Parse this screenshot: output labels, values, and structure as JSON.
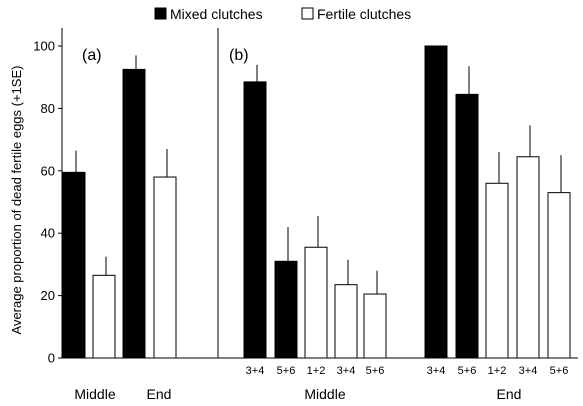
{
  "chart_data": {
    "type": "bar",
    "ylabel": "Average proportion of dead fertile eggs (+1SE)",
    "ylim": [
      0,
      100
    ],
    "yticks": [
      0,
      20,
      40,
      60,
      80,
      100
    ],
    "grid": false,
    "legend": {
      "placement": "top-center",
      "entries": [
        {
          "label": "Mixed clutches",
          "fill": "#000000"
        },
        {
          "label": "Fertile clutches",
          "fill": "#ffffff"
        }
      ]
    },
    "panels": [
      {
        "label": "(a)",
        "groups": [
          {
            "label": "Middle",
            "bars": [
              {
                "series": "Mixed clutches",
                "category": "",
                "value": 59.5,
                "se": 7
              },
              {
                "series": "Fertile clutches",
                "category": "",
                "value": 26.5,
                "se": 6
              }
            ]
          },
          {
            "label": "End",
            "bars": [
              {
                "series": "Mixed clutches",
                "category": "",
                "value": 92.5,
                "se": 4.5
              },
              {
                "series": "Fertile clutches",
                "category": "",
                "value": 58,
                "se": 9
              }
            ]
          }
        ]
      },
      {
        "label": "(b)",
        "groups": [
          {
            "label": "Middle",
            "bars": [
              {
                "series": "Mixed clutches",
                "category": "3+4",
                "value": 88.5,
                "se": 5.5
              },
              {
                "series": "Mixed clutches",
                "category": "5+6",
                "value": 31,
                "se": 11
              },
              {
                "series": "Fertile clutches",
                "category": "1+2",
                "value": 35.5,
                "se": 10
              },
              {
                "series": "Fertile clutches",
                "category": "3+4",
                "value": 23.5,
                "se": 8
              },
              {
                "series": "Fertile clutches",
                "category": "5+6",
                "value": 20.5,
                "se": 7.5
              }
            ]
          },
          {
            "label": "End",
            "bars": [
              {
                "series": "Mixed clutches",
                "category": "3+4",
                "value": 100,
                "se": 0
              },
              {
                "series": "Mixed clutches",
                "category": "5+6",
                "value": 84.5,
                "se": 9
              },
              {
                "series": "Fertile clutches",
                "category": "1+2",
                "value": 56,
                "se": 10
              },
              {
                "series": "Fertile clutches",
                "category": "3+4",
                "value": 64.5,
                "se": 10
              },
              {
                "series": "Fertile clutches",
                "category": "5+6",
                "value": 53,
                "se": 12
              }
            ]
          }
        ]
      }
    ]
  }
}
